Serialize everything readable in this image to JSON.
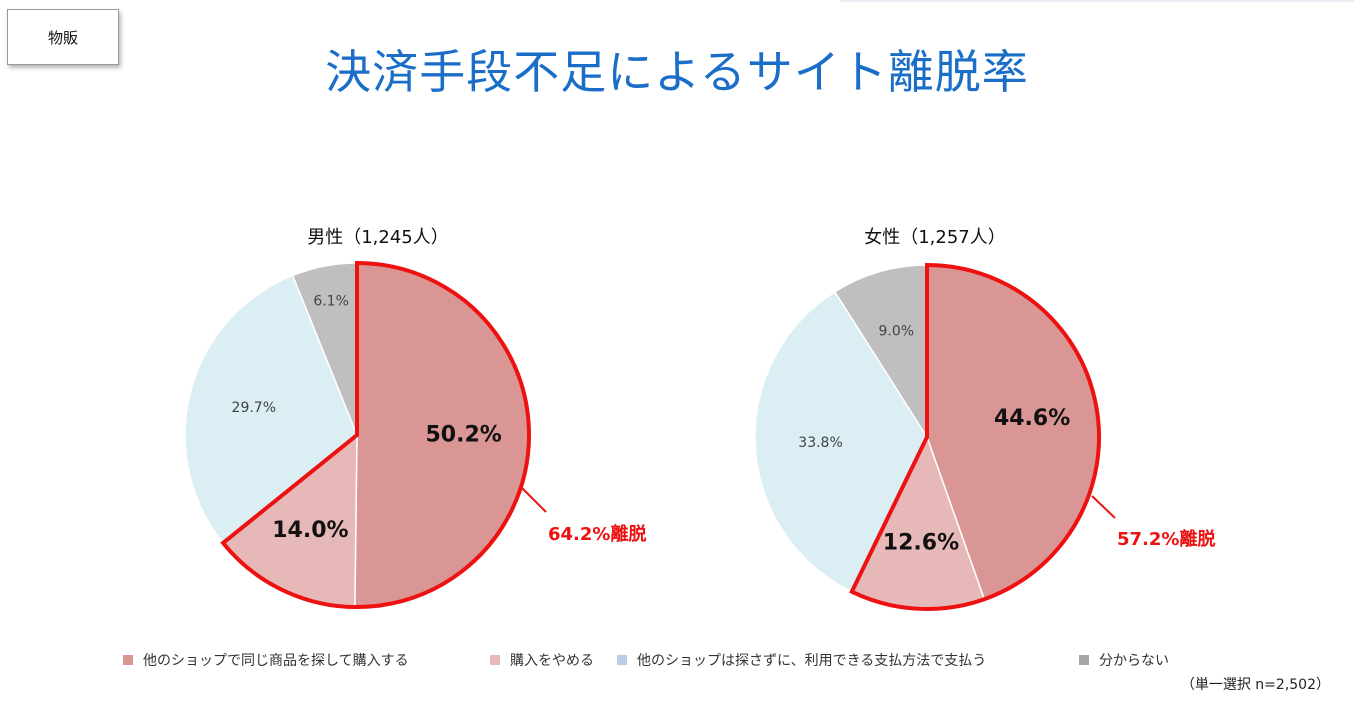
{
  "tag": "物販",
  "title": "決済手段不足によるサイト離脱率",
  "legend": [
    {
      "label": "他のショップで同じ商品を探して購入する",
      "color": "#d99694"
    },
    {
      "label": "購入をやめる",
      "color": "#e6b9b8"
    },
    {
      "label": "他のショップは探さずに、利用できる支払方法で支払う",
      "color": "#b9cde5"
    },
    {
      "label": "分からない",
      "color": "#a6a6a6"
    }
  ],
  "note": "（単一選択 n=2,502）",
  "colors": {
    "slice1": "#d99694",
    "slice2": "#e6b9b8",
    "slice3": "#dbeef3",
    "slice4": "#bfbfbf",
    "highlight": "#ee1111"
  },
  "chart_data": [
    {
      "type": "pie",
      "title": "男性（1,245人）",
      "categories": [
        "他のショップで同じ商品を探して購入する",
        "購入をやめる",
        "他のショップは探さずに、利用できる支払方法で支払う",
        "分からない"
      ],
      "values": [
        50.2,
        14.0,
        29.7,
        6.1
      ],
      "labels": [
        "50.2%",
        "14.0%",
        "29.7%",
        "6.1%"
      ],
      "annotation": "64.2%離脱"
    },
    {
      "type": "pie",
      "title": "女性（1,257人）",
      "categories": [
        "他のショップで同じ商品を探して購入する",
        "購入をやめる",
        "他のショップは探さずに、利用できる支払方法で支払う",
        "分からない"
      ],
      "values": [
        44.6,
        12.6,
        33.8,
        9.0
      ],
      "labels": [
        "44.6%",
        "12.6%",
        "33.8%",
        "9.0%"
      ],
      "annotation": "57.2%離脱"
    }
  ]
}
